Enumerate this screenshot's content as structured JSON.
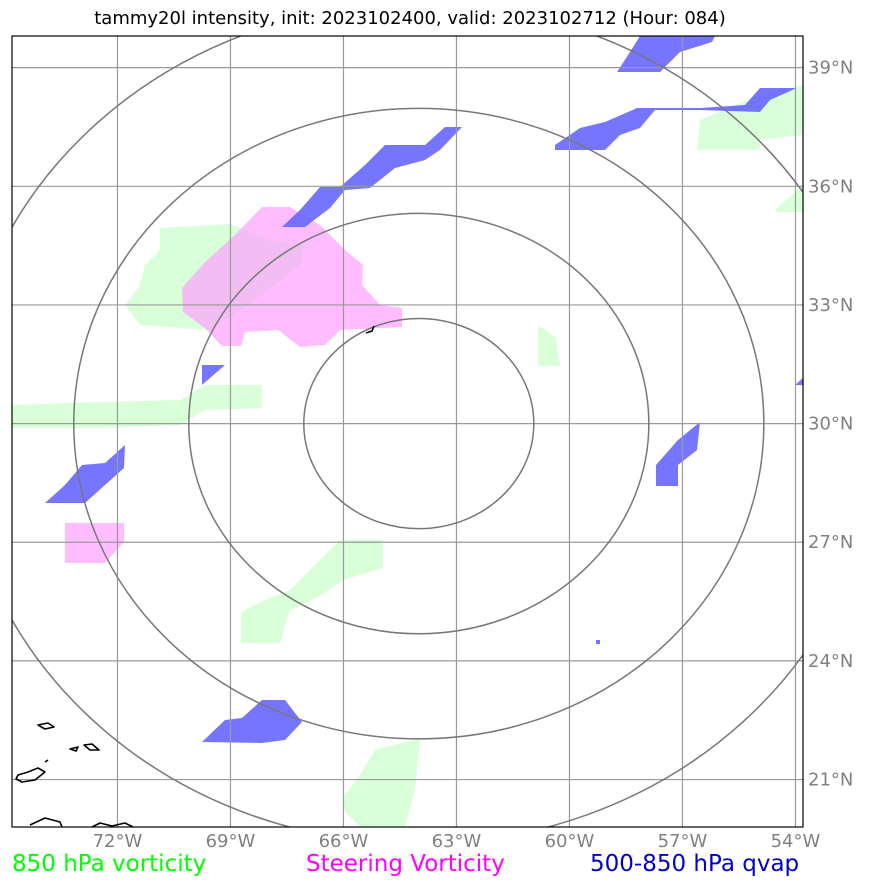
{
  "title": "tammy20l intensity, init: 2023102400, valid: 2023102712 (Hour: 084)",
  "map": {
    "extent": {
      "lon": [
        -74.8,
        -53.8
      ],
      "lat": [
        19.8,
        39.8
      ]
    },
    "center": {
      "lon": -64.0,
      "lat": 30.0
    },
    "lat_ticks": [
      {
        "value": 39,
        "label": "39°N"
      },
      {
        "value": 36,
        "label": "36°N"
      },
      {
        "value": 33,
        "label": "33°N"
      },
      {
        "value": 30,
        "label": "30°N"
      },
      {
        "value": 27,
        "label": "27°N"
      },
      {
        "value": 24,
        "label": "24°N"
      },
      {
        "value": 21,
        "label": "21°N"
      }
    ],
    "lon_ticks": [
      {
        "value": -72,
        "label": "72°W"
      },
      {
        "value": -69,
        "label": "69°W"
      },
      {
        "value": -66,
        "label": "66°W"
      },
      {
        "value": -63,
        "label": "63°W"
      },
      {
        "value": -60,
        "label": "60°W"
      },
      {
        "value": -57,
        "label": "57°W"
      },
      {
        "value": -54,
        "label": "54°W"
      }
    ],
    "range_rings_deg": [
      3.1,
      6.2,
      9.3,
      12.4
    ],
    "colors": {
      "vorticity_850": "#ccffcc",
      "steering_vorticity": "#ff99ff",
      "qvap": "#6666ff",
      "grid": "#999999",
      "rings": "#777777",
      "coast": "#000000"
    }
  },
  "legend": {
    "vort850": "850 hPa vorticity",
    "steering": "Steering Vorticity",
    "qvap": "500-850 hPa qvap"
  }
}
